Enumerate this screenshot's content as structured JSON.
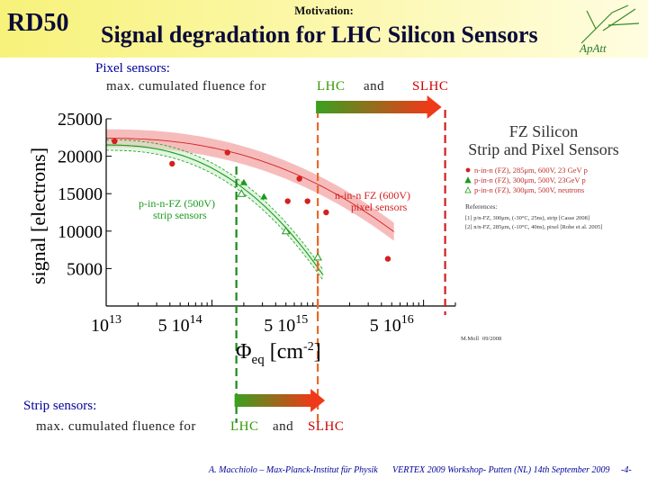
{
  "header": {
    "short_name": "RD50",
    "section": "Motivation:",
    "title": "Signal degradation for LHC Silicon Sensors"
  },
  "pixel": {
    "heading": "Pixel sensors:",
    "text": "max. cumulated fluence for",
    "lhc": "LHC",
    "and": "and",
    "slhc": "SLHC"
  },
  "strip": {
    "heading": "Strip sensors:",
    "text": "max. cumulated fluence for",
    "lhc": "LHC",
    "and": "and",
    "slhc": "SLHC"
  },
  "footer": {
    "author": "A. Macchiolo – Max-Planck-Institut für Physik",
    "event": "VERTEX 2009 Workshop- Putten (NL) 14th September 2009",
    "page": "-4-"
  },
  "colors": {
    "header_bg": "#f7f27a",
    "title": "#0b0b3a",
    "text": "#000099",
    "lhc": "#339900",
    "slhc": "#cc0000",
    "pixel_series": "#d42020",
    "pixel_band": "#f3a6a6",
    "strip_series": "#1a9a1a"
  },
  "chart_data": {
    "type": "scatter",
    "ylabel": "signal [electrons]",
    "xlabel": "Φeq [cm-2]",
    "xscale": "log",
    "xlim": [
      10000000000000.0,
      2e+16
    ],
    "ylim": [
      0,
      25000
    ],
    "y_ticks": [
      "25000",
      "20000",
      "15000",
      "10000",
      "5000"
    ],
    "y_tick_values": [
      25000,
      20000,
      15000,
      10000,
      5000
    ],
    "x_ticks": [
      {
        "value": 10000000000000.0,
        "base": "10",
        "exp": "13"
      },
      {
        "value": 50000000000000.0,
        "base": "5 10",
        "exp": "14"
      },
      {
        "value": 500000000000000.0,
        "base": "5 10",
        "exp": "15"
      },
      {
        "value": 5000000000000000.0,
        "base": "5 10",
        "exp": "16"
      }
    ],
    "legend_title": [
      "FZ Silicon",
      "Strip and Pixel Sensors"
    ],
    "legend": [
      {
        "label": "n-in-n (FZ), 285μm, 600V, 23 GeV p",
        "marker": "dot",
        "color": "#d42020"
      },
      {
        "label": "p-in-n (FZ), 300μm, 500V, 23GeV p",
        "marker": "triangle",
        "color": "#1a9a1a"
      },
      {
        "label": "p-in-n (FZ), 300μm, 500V, neutrons",
        "marker": "triangle-open",
        "color": "#1a9a1a"
      }
    ],
    "references_title": "References:",
    "references": [
      "[1] p/n-FZ, 300μm, (-30°C, 25ns), strip [Casse 2008]",
      "[2] n/n-FZ, 285μm, (-10°C, 40ns), pixel [Rohe et al. 2005]"
    ],
    "annotations": {
      "strip": [
        "p-in-n-FZ (500V)",
        "strip sensors"
      ],
      "pixel": [
        "n-in-n FZ (600V)",
        "pixel sensors"
      ]
    },
    "credit": [
      "M.Moll",
      "09/2008"
    ],
    "series": [
      {
        "name": "n-in-n (FZ), 285μm, 600V, 23 GeV p",
        "color": "#d42020",
        "points": [
          {
            "x": 12000000000000.0,
            "y": 22000
          },
          {
            "x": 42000000000000.0,
            "y": 19000
          },
          {
            "x": 140000000000000.0,
            "y": 20500
          },
          {
            "x": 670000000000000.0,
            "y": 17000
          },
          {
            "x": 520000000000000.0,
            "y": 14000
          },
          {
            "x": 800000000000000.0,
            "y": 14000
          },
          {
            "x": 1200000000000000.0,
            "y": 12500
          },
          {
            "x": 4600000000000000.0,
            "y": 6300
          }
        ]
      },
      {
        "name": "p-in-n (FZ), 300μm, 500V, 23GeV p",
        "color": "#1a9a1a",
        "points": [
          {
            "x": 200000000000000.0,
            "y": 16500
          },
          {
            "x": 310000000000000.0,
            "y": 14600
          }
        ]
      },
      {
        "name": "p-in-n (FZ), 300μm, 500V, neutrons",
        "color": "#1a9a1a",
        "points": [
          {
            "x": 190000000000000.0,
            "y": 15000
          },
          {
            "x": 500000000000000.0,
            "y": 10000
          },
          {
            "x": 1000000000000000.0,
            "y": 6500
          }
        ]
      }
    ],
    "markers": {
      "lhc_pixel_fluence": 1000000000000000.0,
      "slhc_pixel_fluence": 1.6e+16,
      "lhc_strip_fluence": 170000000000000.0,
      "slhc_strip_fluence": 1000000000000000.0
    }
  }
}
